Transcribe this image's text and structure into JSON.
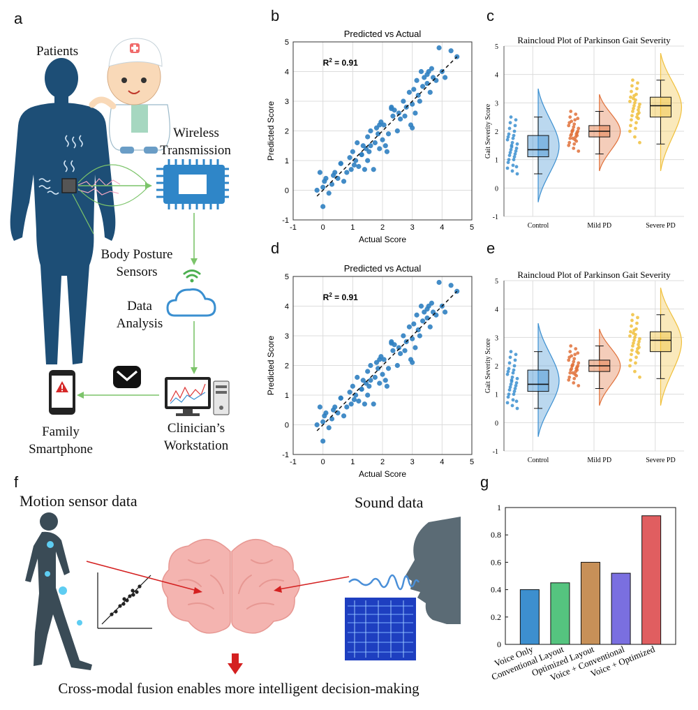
{
  "panel_letters": {
    "a": "a",
    "b": "b",
    "c": "c",
    "d": "d",
    "e": "e",
    "f": "f",
    "g": "g"
  },
  "diagram_a": {
    "patients": "Patients",
    "wireless_l1": "Wireless",
    "wireless_l2": "Transmission",
    "sensors_l1": "Body Posture",
    "sensors_l2": "Sensors",
    "analysis_l1": "Data",
    "analysis_l2": "Analysis",
    "phone_l1": "Family",
    "phone_l2": "Smartphone",
    "workstation_l1": "Clinician’s",
    "workstation_l2": "Workstation",
    "colors": {
      "body": "#1d4e76",
      "arrow": "#7cc46a",
      "chip": "#2f86c8",
      "cloud": "#3a8fd0"
    }
  },
  "diagram_f": {
    "motion_label": "Motion sensor data",
    "sound_label": "Sound data",
    "caption": "Cross-modal fusion enables more intelligent decision-making",
    "colors": {
      "brain": "#f4b4b0",
      "arrow": "#d42020",
      "figure": "#37474f"
    }
  },
  "chart_data": [
    {
      "id": "b",
      "type": "scatter",
      "title": "Predicted vs Actual",
      "xlabel": "Actual Score",
      "ylabel": "Predicted Score",
      "annotation": "R",
      "annotation_sup": "2",
      "annotation_tail": " = 0.91",
      "xlim": [
        -1,
        5
      ],
      "ylim": [
        -1,
        5
      ],
      "xticks": [
        -1,
        0,
        1,
        2,
        3,
        4,
        5
      ],
      "yticks": [
        -1,
        0,
        1,
        2,
        3,
        4,
        5
      ],
      "grid": true,
      "color": "#2f7fc1",
      "fit_line": [
        [
          -0.2,
          -0.2
        ],
        [
          4.5,
          4.5
        ]
      ],
      "x": [
        -0.2,
        -0.1,
        0.0,
        0.05,
        0.1,
        0.2,
        0.3,
        0.35,
        0.4,
        0.5,
        0.6,
        0.7,
        0.8,
        0.9,
        0.95,
        1.0,
        1.05,
        1.1,
        1.15,
        1.2,
        1.3,
        1.35,
        1.4,
        1.45,
        1.5,
        1.5,
        1.55,
        1.6,
        1.6,
        1.7,
        1.75,
        1.8,
        1.85,
        1.9,
        1.95,
        2.0,
        2.05,
        2.1,
        2.15,
        2.2,
        2.3,
        2.35,
        2.4,
        2.5,
        2.55,
        2.6,
        2.7,
        2.75,
        2.8,
        2.9,
        2.95,
        3.0,
        3.05,
        3.1,
        3.15,
        3.2,
        3.25,
        3.3,
        3.35,
        3.4,
        3.5,
        3.55,
        3.6,
        3.65,
        3.7,
        3.8,
        3.9,
        4.0,
        4.1,
        4.3,
        4.5,
        0.0,
        1.3,
        2.3,
        3.0,
        0.6,
        1.9,
        3.5
      ],
      "y": [
        0.0,
        0.6,
        -0.55,
        0.3,
        0.4,
        -0.1,
        0.2,
        0.5,
        0.6,
        0.4,
        0.9,
        0.3,
        0.6,
        1.1,
        0.7,
        1.3,
        0.85,
        1.0,
        1.6,
        0.8,
        1.2,
        1.5,
        0.7,
        1.4,
        1.0,
        1.8,
        1.3,
        2.0,
        1.5,
        0.7,
        1.6,
        2.1,
        1.9,
        1.4,
        2.3,
        1.7,
        2.2,
        1.5,
        1.3,
        1.9,
        2.8,
        2.5,
        2.7,
        2.0,
        2.6,
        2.4,
        3.0,
        2.5,
        2.8,
        3.3,
        2.2,
        2.9,
        3.4,
        2.6,
        3.7,
        3.2,
        3.0,
        4.0,
        3.5,
        3.8,
        3.6,
        4.0,
        3.3,
        4.1,
        3.8,
        3.7,
        4.8,
        4.0,
        3.8,
        4.7,
        4.5,
        0.1,
        1.2,
        2.75,
        2.1,
        0.9,
        2.2,
        3.9
      ]
    },
    {
      "id": "c",
      "type": "raincloud",
      "title": "Raincloud Plot of Parkinson Gait Severity",
      "xlabel": "",
      "ylabel": "Gait Severity Score",
      "categories": [
        "Control",
        "Mild PD",
        "Severe PD"
      ],
      "ylim": [
        -1,
        5
      ],
      "yticks": [
        -1,
        0,
        1,
        2,
        3,
        4,
        5
      ],
      "grid": true,
      "colors": [
        "#3b8fd0",
        "#e0713a",
        "#f0c03c"
      ],
      "box": [
        {
          "whisker_low": 0.5,
          "q1": 1.1,
          "median": 1.35,
          "q3": 1.85,
          "whisker_high": 2.5
        },
        {
          "whisker_low": 1.2,
          "q1": 1.8,
          "median": 2.0,
          "q3": 2.2,
          "whisker_high": 2.7
        },
        {
          "whisker_low": 1.55,
          "q1": 2.5,
          "median": 2.9,
          "q3": 3.2,
          "whisker_high": 3.8
        }
      ],
      "cloud_range": [
        [
          -0.5,
          3.5
        ],
        [
          0.6,
          3.3
        ],
        [
          0.6,
          4.75
        ]
      ],
      "points": [
        [
          0.5,
          0.6,
          0.7,
          0.8,
          0.9,
          1.0,
          1.0,
          1.1,
          1.15,
          1.2,
          1.25,
          1.3,
          1.35,
          1.4,
          1.5,
          1.55,
          1.6,
          1.7,
          1.75,
          1.8,
          1.85,
          1.9,
          2.0,
          2.1,
          2.2,
          2.3,
          2.4,
          2.5,
          0.75,
          1.45
        ],
        [
          1.3,
          1.4,
          1.5,
          1.55,
          1.6,
          1.7,
          1.75,
          1.8,
          1.85,
          1.9,
          1.9,
          1.95,
          2.0,
          2.0,
          2.05,
          2.1,
          2.15,
          2.2,
          2.25,
          2.3,
          2.4,
          2.5,
          2.6,
          2.7,
          1.65,
          2.35,
          1.85,
          2.0,
          2.45,
          1.75
        ],
        [
          1.6,
          1.8,
          2.0,
          2.1,
          2.2,
          2.3,
          2.4,
          2.5,
          2.55,
          2.6,
          2.7,
          2.75,
          2.8,
          2.85,
          2.9,
          2.95,
          3.0,
          3.05,
          3.1,
          3.2,
          3.3,
          3.4,
          3.5,
          3.6,
          3.7,
          3.8,
          2.45,
          3.15,
          2.65,
          3.25
        ]
      ]
    },
    {
      "id": "d",
      "type": "scatter",
      "title": "Predicted vs Actual",
      "xlabel": "Actual Score",
      "ylabel": "Predicted Score",
      "annotation": "R",
      "annotation_sup": "2",
      "annotation_tail": " = 0.91",
      "xlim": [
        -1,
        5
      ],
      "ylim": [
        -1,
        5
      ],
      "xticks": [
        -1,
        0,
        1,
        2,
        3,
        4,
        5
      ],
      "yticks": [
        -1,
        0,
        1,
        2,
        3,
        4,
        5
      ],
      "grid": true,
      "color": "#2f7fc1",
      "fit_line": [
        [
          -0.2,
          -0.2
        ],
        [
          4.5,
          4.5
        ]
      ],
      "x": [
        -0.2,
        -0.1,
        0.0,
        0.05,
        0.1,
        0.2,
        0.3,
        0.35,
        0.4,
        0.5,
        0.6,
        0.7,
        0.8,
        0.9,
        0.95,
        1.0,
        1.05,
        1.1,
        1.15,
        1.2,
        1.3,
        1.35,
        1.4,
        1.45,
        1.5,
        1.5,
        1.55,
        1.6,
        1.6,
        1.7,
        1.75,
        1.8,
        1.85,
        1.9,
        1.95,
        2.0,
        2.05,
        2.1,
        2.15,
        2.2,
        2.3,
        2.35,
        2.4,
        2.5,
        2.55,
        2.6,
        2.7,
        2.75,
        2.8,
        2.9,
        2.95,
        3.0,
        3.05,
        3.1,
        3.15,
        3.2,
        3.25,
        3.3,
        3.35,
        3.4,
        3.5,
        3.55,
        3.6,
        3.65,
        3.7,
        3.8,
        3.9,
        4.0,
        4.1,
        4.3,
        4.5,
        0.0,
        1.3,
        2.3,
        3.0,
        0.6,
        1.9,
        3.5
      ],
      "y": [
        0.0,
        0.6,
        -0.55,
        0.3,
        0.4,
        -0.1,
        0.2,
        0.5,
        0.6,
        0.4,
        0.9,
        0.3,
        0.6,
        1.1,
        0.7,
        1.3,
        0.85,
        1.0,
        1.6,
        0.8,
        1.2,
        1.5,
        0.7,
        1.4,
        1.0,
        1.8,
        1.3,
        2.0,
        1.5,
        0.7,
        1.6,
        2.1,
        1.9,
        1.4,
        2.3,
        1.7,
        2.2,
        1.5,
        1.3,
        1.9,
        2.8,
        2.5,
        2.7,
        2.0,
        2.6,
        2.4,
        3.0,
        2.5,
        2.8,
        3.3,
        2.2,
        2.9,
        3.4,
        2.6,
        3.7,
        3.2,
        3.0,
        4.0,
        3.5,
        3.8,
        3.6,
        4.0,
        3.3,
        4.1,
        3.8,
        3.7,
        4.8,
        4.0,
        3.8,
        4.7,
        4.5,
        0.1,
        1.2,
        2.75,
        2.1,
        0.9,
        2.2,
        3.9
      ]
    },
    {
      "id": "e",
      "type": "raincloud",
      "title": "Raincloud Plot of Parkinson Gait Severity",
      "xlabel": "",
      "ylabel": "Gait Severity Score",
      "categories": [
        "Control",
        "Mild PD",
        "Severe PD"
      ],
      "ylim": [
        -1,
        5
      ],
      "yticks": [
        -1,
        0,
        1,
        2,
        3,
        4,
        5
      ],
      "grid": true,
      "colors": [
        "#3b8fd0",
        "#e0713a",
        "#f0c03c"
      ],
      "box": [
        {
          "whisker_low": 0.5,
          "q1": 1.1,
          "median": 1.35,
          "q3": 1.85,
          "whisker_high": 2.5
        },
        {
          "whisker_low": 1.2,
          "q1": 1.8,
          "median": 2.0,
          "q3": 2.2,
          "whisker_high": 2.7
        },
        {
          "whisker_low": 1.55,
          "q1": 2.5,
          "median": 2.9,
          "q3": 3.2,
          "whisker_high": 3.8
        }
      ],
      "cloud_range": [
        [
          -0.5,
          3.5
        ],
        [
          0.6,
          3.3
        ],
        [
          0.6,
          4.75
        ]
      ],
      "points": [
        [
          0.5,
          0.6,
          0.7,
          0.8,
          0.9,
          1.0,
          1.0,
          1.1,
          1.15,
          1.2,
          1.25,
          1.3,
          1.35,
          1.4,
          1.5,
          1.55,
          1.6,
          1.7,
          1.75,
          1.8,
          1.85,
          1.9,
          2.0,
          2.1,
          2.2,
          2.3,
          2.4,
          2.5,
          0.75,
          1.45
        ],
        [
          1.3,
          1.4,
          1.5,
          1.55,
          1.6,
          1.7,
          1.75,
          1.8,
          1.85,
          1.9,
          1.9,
          1.95,
          2.0,
          2.0,
          2.05,
          2.1,
          2.15,
          2.2,
          2.25,
          2.3,
          2.4,
          2.5,
          2.6,
          2.7,
          1.65,
          2.35,
          1.85,
          2.0,
          2.45,
          1.75
        ],
        [
          1.6,
          1.8,
          2.0,
          2.1,
          2.2,
          2.3,
          2.4,
          2.5,
          2.55,
          2.6,
          2.7,
          2.75,
          2.8,
          2.85,
          2.9,
          2.95,
          3.0,
          3.05,
          3.1,
          3.2,
          3.3,
          3.4,
          3.5,
          3.6,
          3.7,
          3.8,
          2.45,
          3.15,
          2.65,
          3.25
        ]
      ]
    },
    {
      "id": "g",
      "type": "bar",
      "title": "",
      "xlabel": "",
      "ylabel": "",
      "categories": [
        "Voice Only",
        "Conventional Layout",
        "Optimized Layout",
        "Voice + Conventional",
        "Voice + Optimized"
      ],
      "values": [
        0.4,
        0.45,
        0.6,
        0.52,
        0.94
      ],
      "colors": [
        "#3d8fcf",
        "#55c47f",
        "#c79058",
        "#7a6fe0",
        "#e05e60"
      ],
      "ylim": [
        0,
        1
      ],
      "yticks": [
        0,
        0.2,
        0.4,
        0.6,
        0.8,
        1
      ],
      "grid": false
    }
  ]
}
